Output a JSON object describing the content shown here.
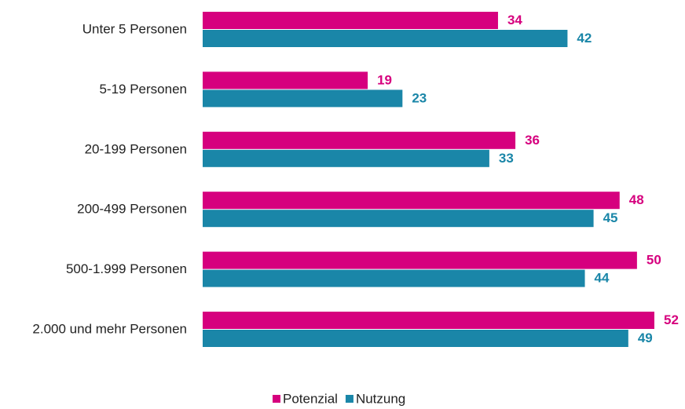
{
  "chart_data": {
    "type": "bar",
    "orientation": "horizontal",
    "categories": [
      "Unter 5 Personen",
      "5-19 Personen",
      "20-199 Personen",
      "200-499 Personen",
      "500-1.999 Personen",
      "2.000 und mehr Personen"
    ],
    "series": [
      {
        "name": "Potenzial",
        "color": "#d6007e",
        "values": [
          34,
          19,
          36,
          48,
          50,
          52
        ]
      },
      {
        "name": "Nutzung",
        "color": "#1a86a8",
        "values": [
          42,
          23,
          33,
          45,
          44,
          49
        ]
      }
    ],
    "legend": "bottom"
  }
}
